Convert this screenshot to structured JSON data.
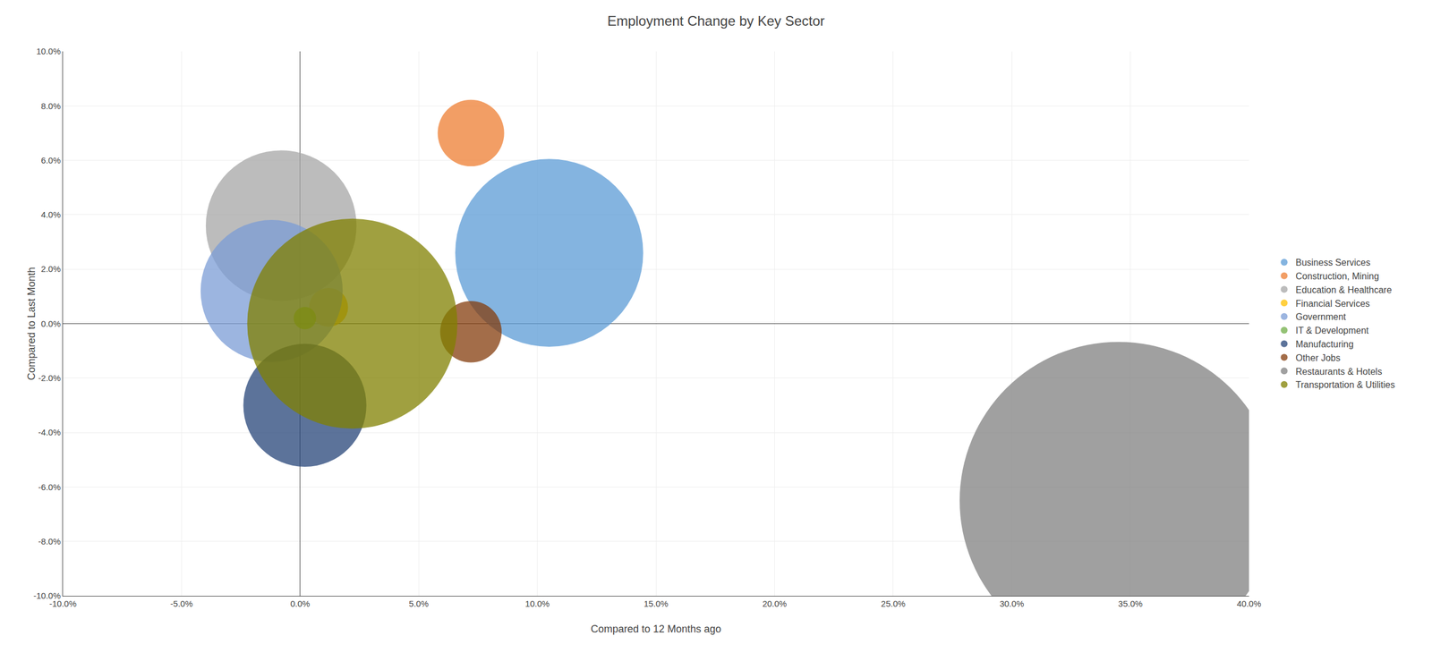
{
  "chart_data": {
    "type": "scatter",
    "title": "Employment Change by Key Sector",
    "xlabel": "Compared to 12 Months ago",
    "ylabel": "Compared to Last Month",
    "xlim": [
      -0.1,
      0.4
    ],
    "ylim": [
      -0.1,
      0.1
    ],
    "xticks": [
      {
        "value": -0.1,
        "label": "-10.0%"
      },
      {
        "value": -0.05,
        "label": "-5.0%"
      },
      {
        "value": 0.0,
        "label": "0.0%"
      },
      {
        "value": 0.05,
        "label": "5.0%"
      },
      {
        "value": 0.1,
        "label": "10.0%"
      },
      {
        "value": 0.15,
        "label": "15.0%"
      },
      {
        "value": 0.2,
        "label": "20.0%"
      },
      {
        "value": 0.25,
        "label": "25.0%"
      },
      {
        "value": 0.3,
        "label": "30.0%"
      },
      {
        "value": 0.35,
        "label": "35.0%"
      },
      {
        "value": 0.4,
        "label": "40.0%"
      }
    ],
    "yticks": [
      {
        "value": -0.1,
        "label": "-10.0%"
      },
      {
        "value": -0.08,
        "label": "-8.0%"
      },
      {
        "value": -0.06,
        "label": "-6.0%"
      },
      {
        "value": -0.04,
        "label": "-4.0%"
      },
      {
        "value": -0.02,
        "label": "-2.0%"
      },
      {
        "value": 0.0,
        "label": "0.0%"
      },
      {
        "value": 0.02,
        "label": "2.0%"
      },
      {
        "value": 0.04,
        "label": "4.0%"
      },
      {
        "value": 0.06,
        "label": "6.0%"
      },
      {
        "value": 0.08,
        "label": "8.0%"
      },
      {
        "value": 0.1,
        "label": "10.0%"
      }
    ],
    "grid": true,
    "legend": "right",
    "series": [
      {
        "name": "Business Services",
        "x": [
          0.105
        ],
        "y": [
          0.026
        ],
        "size": [
          28000
        ],
        "color": "#5b9bd5"
      },
      {
        "name": "Construction, Mining",
        "x": [
          0.072
        ],
        "y": [
          0.07
        ],
        "size": [
          3500
        ],
        "color": "#ed7d31"
      },
      {
        "name": "Education & Healthcare",
        "x": [
          -0.008
        ],
        "y": [
          0.036
        ],
        "size": [
          18000
        ],
        "color": "#a5a5a5"
      },
      {
        "name": "Financial Services",
        "x": [
          0.012
        ],
        "y": [
          0.006
        ],
        "size": [
          1200
        ],
        "color": "#ffc000"
      },
      {
        "name": "Government",
        "x": [
          -0.012
        ],
        "y": [
          0.012
        ],
        "size": [
          16000
        ],
        "color": "#7b9cd5"
      },
      {
        "name": "IT & Development",
        "x": [
          0.002
        ],
        "y": [
          0.002
        ],
        "size": [
          400
        ],
        "color": "#70ad47"
      },
      {
        "name": "Manufacturing",
        "x": [
          0.002
        ],
        "y": [
          -0.03
        ],
        "size": [
          12000
        ],
        "color": "#264478"
      },
      {
        "name": "Other Jobs",
        "x": [
          0.072
        ],
        "y": [
          -0.003
        ],
        "size": [
          3000
        ],
        "color": "#843c0c"
      },
      {
        "name": "Restaurants & Hotels",
        "x": [
          0.345
        ],
        "y": [
          -0.065
        ],
        "size": [
          80000
        ],
        "color": "#808080"
      },
      {
        "name": "Transportation & Utilities",
        "x": [
          0.022
        ],
        "y": [
          0.0
        ],
        "size": [
          35000
        ],
        "color": "#808000"
      }
    ]
  }
}
